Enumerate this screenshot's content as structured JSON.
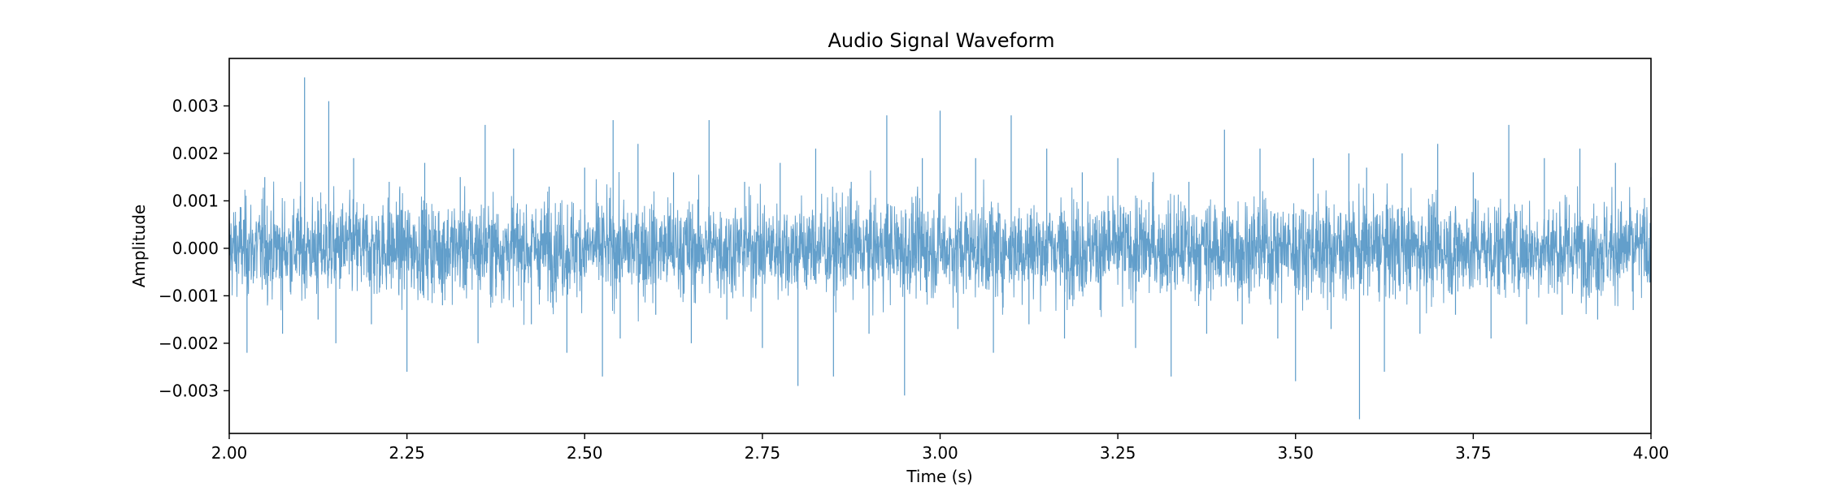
{
  "chart_data": {
    "type": "line",
    "title": "Audio Signal Waveform",
    "xlabel": "Time (s)",
    "ylabel": "Amplitude",
    "xlim": [
      2.0,
      4.0
    ],
    "ylim": [
      -0.0039,
      0.004
    ],
    "x_ticks": [
      2.0,
      2.25,
      2.5,
      2.75,
      3.0,
      3.25,
      3.5,
      3.75,
      4.0
    ],
    "x_tick_labels": [
      "2.00",
      "2.25",
      "2.50",
      "2.75",
      "3.00",
      "3.25",
      "3.50",
      "3.75",
      "4.00"
    ],
    "y_ticks": [
      -0.003,
      -0.002,
      -0.001,
      0.0,
      0.001,
      0.002,
      0.003
    ],
    "y_tick_labels": [
      "−0.003",
      "−0.002",
      "−0.001",
      "0.000",
      "0.001",
      "0.002",
      "0.003"
    ],
    "grid": false,
    "legend": "none",
    "line_color": "#5b9ac8",
    "series": [
      {
        "x": [
          2.0,
          2.025,
          2.05,
          2.075,
          2.1,
          2.106,
          2.125,
          2.14,
          2.15,
          2.175,
          2.2,
          2.225,
          2.25,
          2.275,
          2.3,
          2.325,
          2.35,
          2.36,
          2.375,
          2.4,
          2.425,
          2.45,
          2.475,
          2.5,
          2.525,
          2.54,
          2.55,
          2.575,
          2.6,
          2.625,
          2.65,
          2.675,
          2.7,
          2.725,
          2.75,
          2.775,
          2.8,
          2.825,
          2.85,
          2.875,
          2.9,
          2.925,
          2.95,
          2.975,
          3.0,
          3.025,
          3.05,
          3.075,
          3.1,
          3.125,
          3.15,
          3.175,
          3.2,
          3.225,
          3.25,
          3.275,
          3.3,
          3.325,
          3.35,
          3.375,
          3.4,
          3.425,
          3.45,
          3.475,
          3.5,
          3.525,
          3.55,
          3.575,
          3.59,
          3.6,
          3.625,
          3.65,
          3.675,
          3.7,
          3.725,
          3.75,
          3.775,
          3.8,
          3.825,
          3.85,
          3.875,
          3.9,
          3.925,
          3.95,
          3.975,
          4.0
        ],
        "y": [
          0.0004,
          -0.0022,
          0.0015,
          -0.0018,
          0.0011,
          0.0036,
          -0.0015,
          0.0031,
          -0.002,
          0.0019,
          -0.0016,
          0.0014,
          -0.0026,
          0.0018,
          -0.0012,
          0.0015,
          -0.002,
          0.0026,
          -0.001,
          0.0021,
          -0.0016,
          0.0013,
          -0.0022,
          0.0017,
          -0.0027,
          0.0027,
          -0.0019,
          0.0022,
          -0.0014,
          0.0016,
          -0.002,
          0.0027,
          -0.0015,
          0.0014,
          -0.0021,
          0.0018,
          -0.0029,
          0.0021,
          -0.0027,
          0.0014,
          -0.0018,
          0.0028,
          -0.0031,
          0.0019,
          0.0029,
          -0.0017,
          0.0019,
          -0.0022,
          0.0028,
          -0.0016,
          0.0021,
          -0.0019,
          0.0016,
          -0.0013,
          0.0019,
          -0.0021,
          0.0016,
          -0.0027,
          0.0014,
          -0.0018,
          0.0025,
          -0.0016,
          0.0021,
          -0.0019,
          -0.0028,
          0.0019,
          -0.0017,
          0.002,
          -0.0036,
          0.0017,
          -0.0026,
          0.002,
          -0.0018,
          0.0022,
          -0.0014,
          0.0016,
          -0.0019,
          0.0026,
          -0.0016,
          0.0019,
          -0.0014,
          0.0021,
          -0.0015,
          0.0018,
          -0.0013,
          0.0015
        ]
      }
    ]
  }
}
